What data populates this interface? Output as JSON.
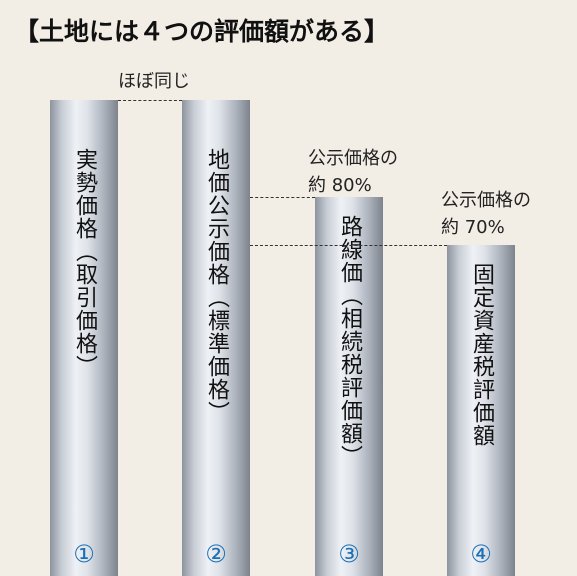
{
  "title": "【土地には４つの評価額がある】",
  "pillars": [
    {
      "label": "実勢価格（取引価格）",
      "number": "①"
    },
    {
      "label": "地価公示価格（標準価格）",
      "number": "②"
    },
    {
      "label": "路線価（相続税評価額）",
      "number": "③"
    },
    {
      "label": "固定資産税評価額",
      "number": "④"
    }
  ],
  "annotations": [
    {
      "lines": [
        "ほぼ同じ"
      ]
    },
    {
      "lines": [
        "公示価格の",
        "約 80%"
      ]
    },
    {
      "lines": [
        "公示価格の",
        "約 70%"
      ]
    }
  ]
}
